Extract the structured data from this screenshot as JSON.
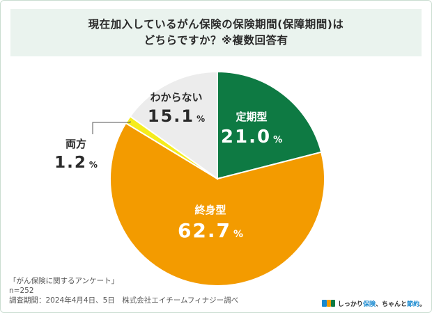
{
  "title": {
    "line1": "現在加入しているがん保険の保険期間(保障期間)は",
    "line2": "どちらですか？※複数回答有"
  },
  "chart_data": {
    "type": "pie",
    "unit": "%",
    "slices": [
      {
        "label": "定期型",
        "value": 21.0,
        "value_text": "21.0",
        "color": "#0e7a43",
        "text_color": "#ffffff"
      },
      {
        "label": "終身型",
        "value": 62.7,
        "value_text": "62.7",
        "color": "#f39b00",
        "text_color": "#ffffff"
      },
      {
        "label": "両方",
        "value": 1.2,
        "value_text": "1.2",
        "color": "#f5ec1c",
        "text_color": "#2a2a2a"
      },
      {
        "label": "わからない",
        "value": 15.1,
        "value_text": "15.1",
        "color": "#ececec",
        "text_color": "#2a2a2a"
      }
    ]
  },
  "footer": {
    "survey_name": "「がん保険に関するアンケート」",
    "sample_size": "n=252",
    "period": "調査期間：2024年4月4日、5日　株式会社エイチームフィナジー調べ"
  },
  "brand": {
    "text_a": "しっかり",
    "text_b": "保険",
    "text_c": "、ちゃんと",
    "text_d": "節約",
    "text_e": "。"
  }
}
